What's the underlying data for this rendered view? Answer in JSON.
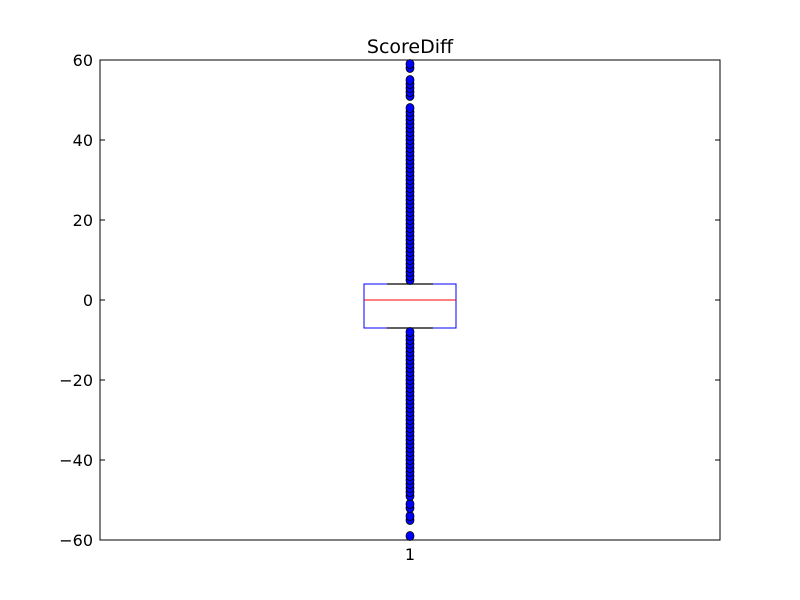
{
  "chart_data": {
    "type": "box",
    "title": "ScoreDiff",
    "xlabel": "",
    "ylabel": "",
    "categories": [
      "1"
    ],
    "ylim": [
      -60,
      60
    ],
    "yticks": [
      -60,
      -40,
      -20,
      0,
      20,
      40,
      60
    ],
    "ytick_labels": [
      "−60",
      "−40",
      "−20",
      "0",
      "20",
      "40",
      "60"
    ],
    "grid": false,
    "legend": "none",
    "box": {
      "category": "1",
      "whisker_low": -7,
      "q1": -7,
      "median": 0,
      "q3": 4,
      "whisker_high": 4,
      "outliers": [
        -59,
        -55,
        -54,
        -52,
        -51,
        -49,
        -48,
        -47,
        -46,
        -45,
        -44,
        -43,
        -42,
        -41,
        -40,
        -39,
        -38,
        -37,
        -36,
        -35,
        -34,
        -33,
        -32,
        -31,
        -30,
        -29,
        -28,
        -27,
        -26,
        -25,
        -24,
        -23,
        -22,
        -21,
        -20,
        -19,
        -18,
        -17,
        -16,
        -15,
        -14,
        -13,
        -12,
        -11,
        -10,
        -9,
        -8,
        5,
        6,
        7,
        8,
        9,
        10,
        11,
        12,
        13,
        14,
        15,
        16,
        17,
        18,
        19,
        20,
        21,
        22,
        23,
        24,
        25,
        26,
        27,
        28,
        29,
        30,
        31,
        32,
        33,
        34,
        35,
        36,
        37,
        38,
        39,
        40,
        41,
        42,
        43,
        44,
        45,
        46,
        47,
        48,
        51,
        52,
        53,
        54,
        55,
        58,
        59
      ]
    },
    "colors": {
      "box": "#0000ff",
      "median": "#ff0000",
      "whisker": "#000000",
      "outlier_fill": "#0000ff",
      "outlier_edge": "#000000"
    }
  }
}
